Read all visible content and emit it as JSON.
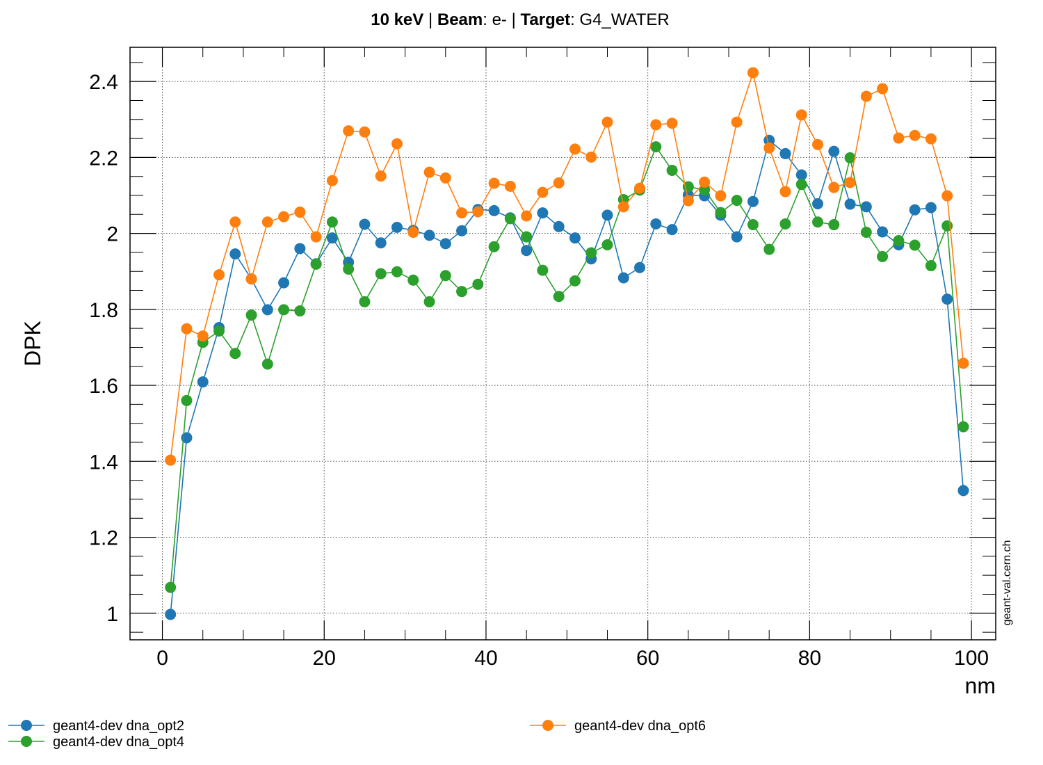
{
  "title": {
    "energy": "10 keV",
    "sep1": " | ",
    "beam_label": "Beam",
    "beam_value": ": e- ",
    "sep2": "| ",
    "target_label": "Target",
    "target_value": ": G4_WATER"
  },
  "watermark": "geant-val.cern.ch",
  "chart_data": {
    "type": "line",
    "xlabel": "nm",
    "ylabel": "DPK",
    "xlim": [
      -4,
      103
    ],
    "ylim": [
      0.93,
      2.49
    ],
    "xticks": [
      0,
      20,
      40,
      60,
      80,
      100
    ],
    "yticks": [
      1,
      1.2,
      1.4,
      1.6,
      1.8,
      2,
      2.2,
      2.4
    ],
    "ytick_labels": [
      "1",
      "1.2",
      "1.4",
      "1.6",
      "1.8",
      "2",
      "2.2",
      "2.4"
    ],
    "grid": true,
    "legend_position": "bottom",
    "x": [
      1,
      3,
      5,
      7,
      9,
      11,
      13,
      15,
      17,
      19,
      21,
      23,
      25,
      27,
      29,
      31,
      33,
      35,
      37,
      39,
      41,
      43,
      45,
      47,
      49,
      51,
      53,
      55,
      57,
      59,
      61,
      63,
      65,
      67,
      69,
      71,
      73,
      75,
      77,
      79,
      81,
      83,
      85,
      87,
      89,
      91,
      93,
      95,
      97,
      99
    ],
    "series": [
      {
        "name": "geant4-dev dna_opt2",
        "color": "#1f77b4",
        "values": [
          0.997,
          1.462,
          1.609,
          1.752,
          1.946,
          1.88,
          1.799,
          1.87,
          1.96,
          1.92,
          1.988,
          1.924,
          2.024,
          1.975,
          2.016,
          2.008,
          1.995,
          1.973,
          2.007,
          2.063,
          2.06,
          2.041,
          1.955,
          2.054,
          2.018,
          1.988,
          1.933,
          2.048,
          1.883,
          1.91,
          2.025,
          2.01,
          2.101,
          2.099,
          2.048,
          1.991,
          2.084,
          2.245,
          2.21,
          2.154,
          2.078,
          2.216,
          2.077,
          2.07,
          2.004,
          1.97,
          2.062,
          2.068,
          1.827,
          1.323
        ]
      },
      {
        "name": "geant4-dev dna_opt4",
        "color": "#2ca02c",
        "values": [
          1.068,
          1.56,
          1.713,
          1.743,
          1.684,
          1.785,
          1.656,
          1.799,
          1.796,
          1.919,
          2.03,
          1.906,
          1.82,
          1.894,
          1.899,
          1.877,
          1.82,
          1.889,
          1.847,
          1.866,
          1.965,
          2.039,
          1.991,
          1.903,
          1.834,
          1.875,
          1.949,
          1.97,
          2.089,
          2.114,
          2.228,
          2.166,
          2.123,
          2.115,
          2.055,
          2.087,
          2.023,
          1.958,
          2.025,
          2.129,
          2.03,
          2.023,
          2.199,
          2.003,
          1.939,
          1.981,
          1.969,
          1.915,
          2.02,
          1.491
        ]
      },
      {
        "name": "geant4-dev dna_opt6",
        "color": "#ff7f0e",
        "values": [
          1.403,
          1.749,
          1.73,
          1.891,
          2.03,
          1.88,
          2.03,
          2.044,
          2.056,
          1.991,
          2.139,
          2.27,
          2.267,
          2.151,
          2.236,
          2.003,
          2.161,
          2.146,
          2.054,
          2.057,
          2.132,
          2.124,
          2.046,
          2.108,
          2.133,
          2.222,
          2.201,
          2.293,
          2.07,
          2.119,
          2.286,
          2.29,
          2.086,
          2.135,
          2.099,
          2.293,
          2.423,
          2.225,
          2.11,
          2.312,
          2.234,
          2.121,
          2.134,
          2.361,
          2.381,
          2.251,
          2.258,
          2.249,
          2.099,
          1.658
        ]
      }
    ]
  }
}
